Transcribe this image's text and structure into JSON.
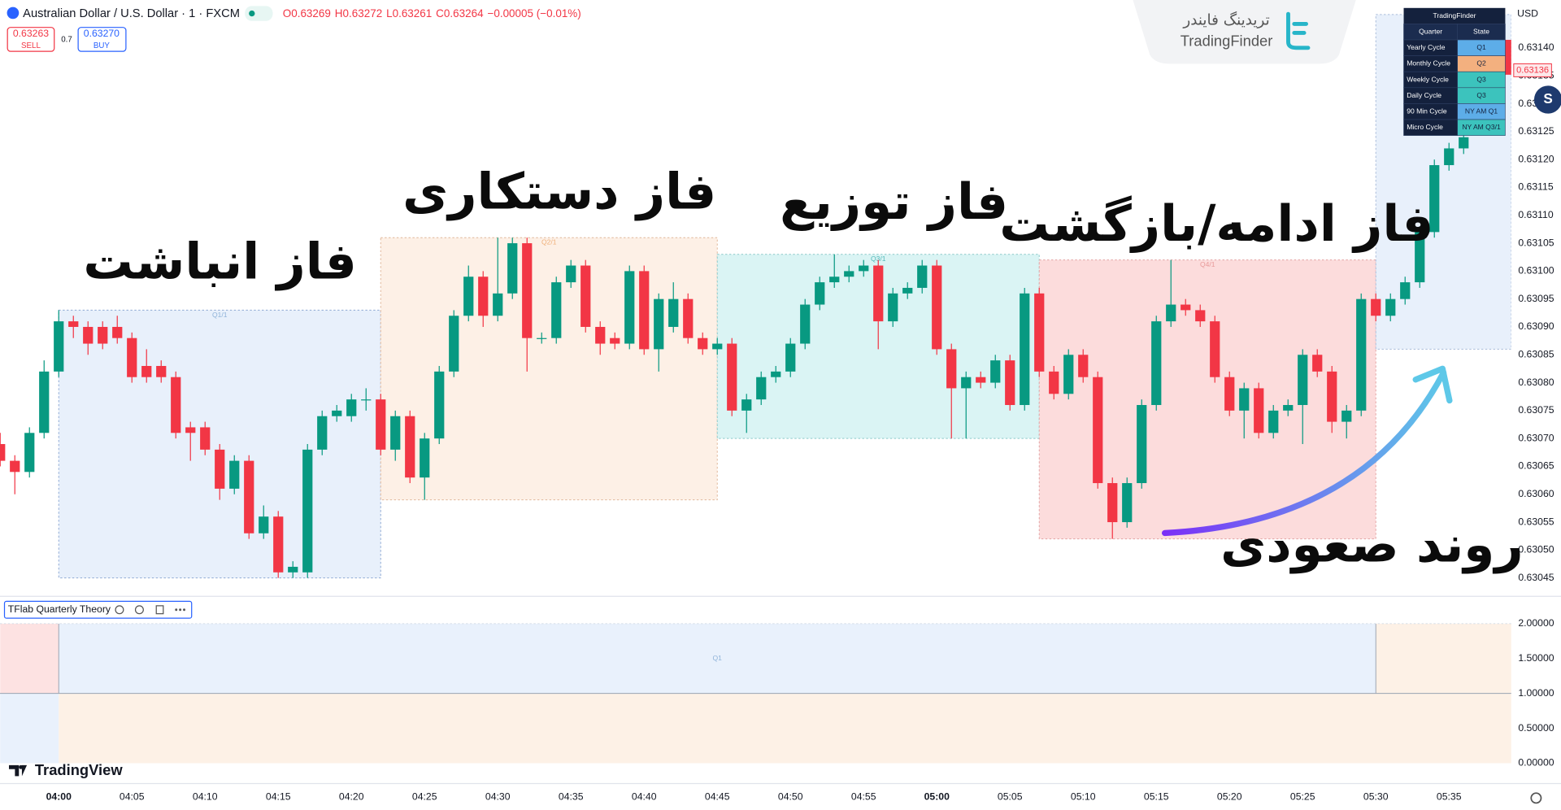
{
  "header": {
    "symbol": "Australian Dollar / U.S. Dollar · 1 · FXCM",
    "ohlc": [
      "O0.63269",
      "H0.63272",
      "L0.63261",
      "C0.63264",
      "−0.00005 (−0.01%)"
    ],
    "sell_price": "0.63263",
    "sell": "SELL",
    "spread": "0.7",
    "buy_price": "0.63270",
    "buy": "BUY"
  },
  "logo": {
    "fa": "تریدینگ فایندر",
    "en": "TradingFinder"
  },
  "watermark": "TradingView",
  "chart_data": {
    "type": "candlestick",
    "up_color": "#089981",
    "down_color": "#f23645",
    "categories": [
      null,
      null,
      null,
      null,
      "04:00",
      null,
      null,
      null,
      null,
      "04:05",
      null,
      null,
      null,
      null,
      "04:10",
      null,
      null,
      null,
      null,
      "04:15",
      null,
      null,
      null,
      null,
      "04:20",
      null,
      null,
      null,
      null,
      "04:25",
      null,
      null,
      null,
      null,
      "04:30",
      null,
      null,
      null,
      null,
      "04:35",
      null,
      null,
      null,
      null,
      "04:40",
      null,
      null,
      null,
      null,
      "04:45",
      null,
      null,
      null,
      null,
      "04:50",
      null,
      null,
      null,
      null,
      "04:55",
      null,
      null,
      null,
      null,
      "05:00",
      null,
      null,
      null,
      null,
      "05:05",
      null,
      null,
      null,
      null,
      "05:10",
      null,
      null,
      null,
      null,
      "05:15",
      null,
      null,
      null,
      null,
      "05:20",
      null,
      null,
      null,
      null,
      "05:25",
      null,
      null,
      null,
      null,
      "05:30",
      null,
      null,
      null,
      null,
      "05:35",
      null
    ],
    "open": [
      0.63069,
      0.63066,
      0.63064,
      0.63071,
      0.63082,
      0.63091,
      0.6309,
      0.6309,
      0.6309,
      0.63088,
      0.63083,
      0.63083,
      0.63081,
      0.63072,
      0.63072,
      0.63068,
      0.63061,
      0.63066,
      0.63053,
      0.63056,
      0.63046,
      0.63046,
      0.63068,
      0.63074,
      0.63074,
      0.63077,
      0.63077,
      0.63068,
      0.63074,
      0.63063,
      0.6307,
      0.63082,
      0.63092,
      0.63099,
      0.63092,
      0.63096,
      0.63105,
      0.63088,
      0.63088,
      0.63098,
      0.63101,
      0.6309,
      0.63088,
      0.63087,
      0.631,
      0.63086,
      0.6309,
      0.63095,
      0.63088,
      0.63086,
      0.63087,
      0.63075,
      0.63077,
      0.63081,
      0.63082,
      0.63087,
      0.63094,
      0.63098,
      0.63099,
      0.631,
      0.63101,
      0.63091,
      0.63096,
      0.63097,
      0.63101,
      0.63086,
      0.63079,
      0.63081,
      0.6308,
      0.63084,
      0.63076,
      0.63096,
      0.63082,
      0.63078,
      0.63085,
      0.63081,
      0.63062,
      0.63055,
      0.63062,
      0.63076,
      0.63091,
      0.63094,
      0.63093,
      0.63091,
      0.63081,
      0.63075,
      0.63079,
      0.63071,
      0.63075,
      0.63076,
      0.63085,
      0.63082,
      0.63073,
      0.63075,
      0.63095,
      0.63092,
      0.63095,
      0.63098,
      0.63107,
      0.63119,
      0.63122
    ],
    "high": [
      0.63071,
      0.63067,
      0.63072,
      0.63084,
      0.63093,
      0.63092,
      0.63091,
      0.63091,
      0.63092,
      0.63089,
      0.63086,
      0.63084,
      0.63082,
      0.63073,
      0.63073,
      0.63069,
      0.63067,
      0.63067,
      0.63058,
      0.63057,
      0.63048,
      0.63069,
      0.63075,
      0.63076,
      0.63078,
      0.63079,
      0.63078,
      0.63075,
      0.63075,
      0.63071,
      0.63083,
      0.63093,
      0.63101,
      0.631,
      0.63106,
      0.63106,
      0.63106,
      0.63089,
      0.63099,
      0.63102,
      0.63102,
      0.63091,
      0.63089,
      0.63101,
      0.63101,
      0.63096,
      0.63098,
      0.63096,
      0.63089,
      0.63088,
      0.63088,
      0.63078,
      0.63082,
      0.63083,
      0.63088,
      0.63095,
      0.63099,
      0.63103,
      0.63101,
      0.63102,
      0.63102,
      0.63097,
      0.63098,
      0.63102,
      0.63102,
      0.63087,
      0.63082,
      0.63082,
      0.63085,
      0.63085,
      0.63097,
      0.63097,
      0.63083,
      0.63086,
      0.63086,
      0.63082,
      0.63063,
      0.63063,
      0.63077,
      0.63092,
      0.63102,
      0.63095,
      0.63094,
      0.63092,
      0.63082,
      0.6308,
      0.6308,
      0.63076,
      0.63077,
      0.63086,
      0.63086,
      0.63083,
      0.63076,
      0.63096,
      0.63096,
      0.63096,
      0.63099,
      0.63108,
      0.6312,
      0.63123,
      0.63125
    ],
    "low": [
      0.63065,
      0.6306,
      0.63063,
      0.6307,
      0.63081,
      0.63088,
      0.63085,
      0.63086,
      0.63087,
      0.6308,
      0.6308,
      0.6308,
      0.6307,
      0.63066,
      0.63067,
      0.63059,
      0.6306,
      0.63052,
      0.63052,
      0.63045,
      0.63045,
      0.63045,
      0.63067,
      0.63073,
      0.63073,
      0.63075,
      0.63067,
      0.63066,
      0.63062,
      0.63059,
      0.63069,
      0.63081,
      0.63091,
      0.6309,
      0.63091,
      0.63095,
      0.63082,
      0.63087,
      0.63087,
      0.63097,
      0.63089,
      0.63085,
      0.63086,
      0.63086,
      0.63085,
      0.63082,
      0.63089,
      0.63087,
      0.63085,
      0.63085,
      0.63074,
      0.63071,
      0.63076,
      0.6308,
      0.63081,
      0.63086,
      0.63093,
      0.63097,
      0.63098,
      0.63099,
      0.63086,
      0.6309,
      0.63095,
      0.63096,
      0.63085,
      0.6307,
      0.6307,
      0.63079,
      0.63079,
      0.63075,
      0.63075,
      0.63081,
      0.63077,
      0.63077,
      0.6308,
      0.63061,
      0.63052,
      0.63054,
      0.63061,
      0.63075,
      0.6309,
      0.63092,
      0.6309,
      0.6308,
      0.63074,
      0.6307,
      0.6307,
      0.6307,
      0.63074,
      0.63069,
      0.63081,
      0.63071,
      0.6307,
      0.63074,
      0.63091,
      0.63091,
      0.63094,
      0.63097,
      0.63106,
      0.63118,
      0.63121
    ],
    "close": [
      0.63066,
      0.63064,
      0.63071,
      0.63082,
      0.63091,
      0.6309,
      0.63087,
      0.63087,
      0.63088,
      0.63081,
      0.63081,
      0.63081,
      0.63071,
      0.63071,
      0.63068,
      0.63061,
      0.63066,
      0.63053,
      0.63056,
      0.63046,
      0.63047,
      0.63068,
      0.63074,
      0.63075,
      0.63077,
      0.63077,
      0.63068,
      0.63074,
      0.63063,
      0.6307,
      0.63082,
      0.63092,
      0.63099,
      0.63092,
      0.63096,
      0.63105,
      0.63088,
      0.63088,
      0.63098,
      0.63101,
      0.6309,
      0.63087,
      0.63087,
      0.631,
      0.63086,
      0.63095,
      0.63095,
      0.63088,
      0.63086,
      0.63087,
      0.63075,
      0.63077,
      0.63081,
      0.63082,
      0.63087,
      0.63094,
      0.63098,
      0.63099,
      0.631,
      0.63101,
      0.63091,
      0.63096,
      0.63097,
      0.63101,
      0.63086,
      0.63079,
      0.63081,
      0.6308,
      0.63084,
      0.63076,
      0.63096,
      0.63082,
      0.63078,
      0.63085,
      0.63081,
      0.63062,
      0.63055,
      0.63062,
      0.63076,
      0.63091,
      0.63094,
      0.63093,
      0.63091,
      0.63081,
      0.63075,
      0.63079,
      0.63071,
      0.63075,
      0.63076,
      0.63085,
      0.63082,
      0.63073,
      0.63075,
      0.63095,
      0.63092,
      0.63095,
      0.63098,
      0.63107,
      0.63119,
      0.63122,
      0.63124
    ],
    "ylim": [
      0.630418,
      0.631486
    ],
    "yticks": [
      {
        "value": 0.63045,
        "label": "0.63045"
      },
      {
        "value": 0.6305,
        "label": "0.63050"
      },
      {
        "value": 0.63055,
        "label": "0.63055"
      },
      {
        "value": 0.6306,
        "label": "0.63060"
      },
      {
        "value": 0.63065,
        "label": "0.63065"
      },
      {
        "value": 0.6307,
        "label": "0.63070"
      },
      {
        "value": 0.63075,
        "label": "0.63075"
      },
      {
        "value": 0.6308,
        "label": "0.63080"
      },
      {
        "value": 0.63085,
        "label": "0.63085"
      },
      {
        "value": 0.6309,
        "label": "0.63090"
      },
      {
        "value": 0.63095,
        "label": "0.63095"
      },
      {
        "value": 0.631,
        "label": "0.63100"
      },
      {
        "value": 0.63105,
        "label": "0.63105"
      },
      {
        "value": 0.6311,
        "label": "0.63110"
      },
      {
        "value": 0.63115,
        "label": "0.63115"
      },
      {
        "value": 0.6312,
        "label": "0.63120"
      },
      {
        "value": 0.63125,
        "label": "0.63125"
      },
      {
        "value": 0.6313,
        "label": "0.63130"
      },
      {
        "value": 0.63135,
        "label": "0.63135"
      },
      {
        "value": 0.6314,
        "label": "0.63140"
      }
    ],
    "grid": false,
    "currency": "USD",
    "last_price": 0.63136,
    "zones": [
      {
        "label": "Q1/1",
        "x0": 4,
        "x1": 26,
        "top": 0.63093,
        "bottom": 0.63045,
        "color": "#e8f0fb",
        "border": "#8fa9d3",
        "text_color": "#8fb3d9"
      },
      {
        "label": "Q2/1",
        "x0": 26,
        "x1": 49,
        "top": 0.63106,
        "bottom": 0.63059,
        "color": "#fdf0e6",
        "border": "#e0b79a",
        "text_color": "#f0b07a"
      },
      {
        "label": "Q3/1",
        "x0": 49,
        "x1": 71,
        "top": 0.63103,
        "bottom": 0.6307,
        "color": "#daf4f4",
        "border": "#8cc9c9",
        "text_color": "#53b8b8"
      },
      {
        "label": "Q4/1",
        "x0": 71,
        "x1": 94,
        "top": 0.63102,
        "bottom": 0.63052,
        "color": "#fcdcdc",
        "border": "#e2a3a3",
        "text_color": "#e89a9a"
      },
      {
        "x0": 94,
        "x1": 103.25,
        "top": 0.63146,
        "bottom": 0.63086,
        "color": "#e8f0fb",
        "border": "#a9bcd9"
      }
    ],
    "annotations": [
      "فاز انباشت",
      "فاز دستکاری",
      "فاز توزیع",
      "فاز ادامه/بازگشت",
      "روند صعودی"
    ],
    "indicator": {
      "name": "TFlab Quarterly Theory",
      "ylim": [
        -0.2857,
        2.3714
      ],
      "yticks": [
        {
          "value": 0,
          "label": "0.00000"
        },
        {
          "value": 0.5,
          "label": "0.50000"
        },
        {
          "value": 1,
          "label": "1.00000"
        },
        {
          "value": 1.5,
          "label": "1.50000"
        },
        {
          "value": 2,
          "label": "2.00000"
        }
      ],
      "bands": [
        {
          "from": 1,
          "to": 2,
          "segments": [
            {
              "x0": 0,
              "x1": 4,
              "color": "#fde2e2"
            },
            {
              "x0": 4,
              "x1": 94,
              "color": "#e9f1fc",
              "label": "Q1"
            },
            {
              "x0": 94,
              "x1": 103.25,
              "color": "#fdf1e6"
            }
          ]
        },
        {
          "from": 0,
          "to": 1,
          "segments": [
            {
              "x0": 0,
              "x1": 4,
              "color": "#e9f1fc"
            },
            {
              "x0": 4,
              "x1": 103.25,
              "color": "#fdf1e6"
            }
          ]
        }
      ]
    }
  },
  "table": {
    "title": "TradingFinder",
    "header": [
      "Quarter",
      "State"
    ],
    "rows": [
      {
        "cells": [
          "Yearly Cycle",
          "Q1"
        ],
        "color": "#5dade8"
      },
      {
        "cells": [
          "Monthly Cycle",
          "Q2"
        ],
        "color": "#f3b07f"
      },
      {
        "cells": [
          "Weekly Cycle",
          "Q3"
        ],
        "color": "#3cc3bd"
      },
      {
        "cells": [
          "Daily Cycle",
          "Q3"
        ],
        "color": "#3cc3bd"
      },
      {
        "cells": [
          "90 Min Cycle",
          "NY AM Q1"
        ],
        "color": "#5dade8"
      },
      {
        "cells": [
          "Micro Cycle",
          "NY AM Q3/1"
        ],
        "color": "#3cc3bd"
      }
    ]
  }
}
